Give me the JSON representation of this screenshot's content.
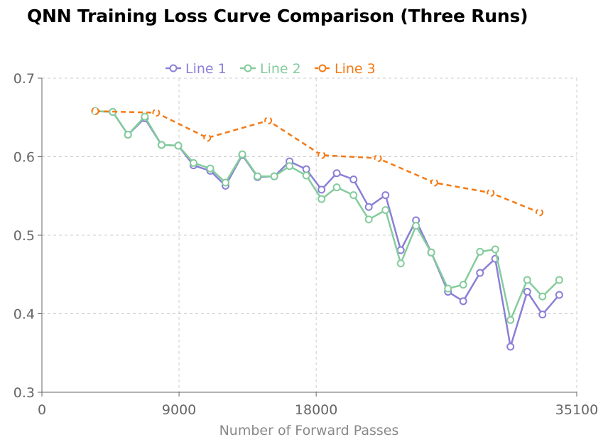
{
  "chart_data": {
    "type": "line",
    "title": "QNN Training Loss Curve Comparison (Three Runs)",
    "xlabel": "Number of Forward Passes",
    "ylabel": "",
    "xlim": [
      0,
      35100
    ],
    "ylim": [
      0.3,
      0.7
    ],
    "x_ticks": [
      0,
      9000,
      18000,
      35100
    ],
    "y_ticks": [
      0.3,
      0.4,
      0.5,
      0.6,
      0.7
    ],
    "grid": true,
    "legend_position": "top-center",
    "series": [
      {
        "name": "Line 1",
        "color": "#8a7fd6",
        "dashed": false,
        "x": [
          3500,
          4650,
          5650,
          6750,
          7850,
          8950,
          9950,
          11050,
          12050,
          13150,
          14150,
          15250,
          16250,
          17350,
          18350,
          19350,
          20450,
          21450,
          22550,
          23550,
          24550,
          25550,
          26650,
          27650,
          28750,
          29750,
          30750,
          31850,
          32850,
          33950
        ],
        "y": [
          0.658,
          0.657,
          0.628,
          0.649,
          0.615,
          0.614,
          0.589,
          0.582,
          0.563,
          0.602,
          0.574,
          0.575,
          0.594,
          0.584,
          0.558,
          0.579,
          0.571,
          0.536,
          0.551,
          0.481,
          0.519,
          0.478,
          0.428,
          0.416,
          0.452,
          0.47,
          0.358,
          0.428,
          0.399,
          0.424
        ]
      },
      {
        "name": "Line 2",
        "color": "#84cc9c",
        "dashed": false,
        "x": [
          3500,
          4650,
          5650,
          6750,
          7850,
          8950,
          9950,
          11050,
          12050,
          13150,
          14150,
          15250,
          16250,
          17350,
          18350,
          19350,
          20450,
          21450,
          22550,
          23550,
          24550,
          25550,
          26650,
          27650,
          28750,
          29750,
          30750,
          31850,
          32850,
          33950
        ],
        "y": [
          0.658,
          0.657,
          0.628,
          0.651,
          0.615,
          0.614,
          0.592,
          0.585,
          0.567,
          0.603,
          0.575,
          0.575,
          0.588,
          0.576,
          0.546,
          0.561,
          0.551,
          0.52,
          0.532,
          0.464,
          0.512,
          0.478,
          0.432,
          0.437,
          0.479,
          0.482,
          0.392,
          0.443,
          0.422,
          0.443
        ]
      },
      {
        "name": "Line 3",
        "color": "#f57a14",
        "dashed": true,
        "x": [
          3500,
          7500,
          10850,
          14850,
          18350,
          22050,
          25750,
          29450,
          32650
        ],
        "y": [
          0.658,
          0.656,
          0.624,
          0.646,
          0.602,
          0.598,
          0.567,
          0.554,
          0.529
        ]
      }
    ]
  }
}
